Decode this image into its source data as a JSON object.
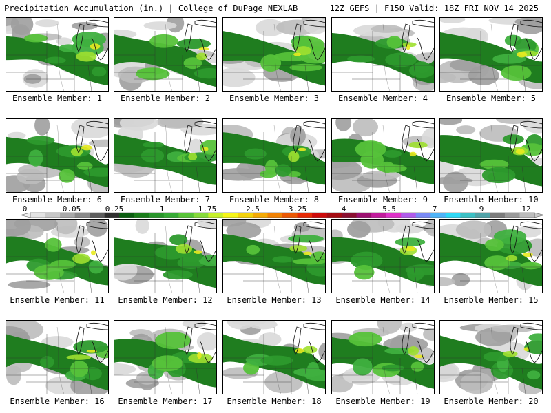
{
  "header": {
    "title": "Precipitation Accumulation (in.) | College of DuPage NEXLAB",
    "run_info": "12Z GEFS | F150 Valid: 18Z FRI NOV 14 2025"
  },
  "colorbar": {
    "tick_labels": [
      "0",
      "0.05",
      "0.25",
      "1",
      "1.75",
      "2.5",
      "3.25",
      "4",
      "5.5",
      "7",
      "9",
      "12"
    ],
    "colors": [
      "#e3e3e3",
      "#c8c8c8",
      "#a9a9a9",
      "#8a8a8a",
      "#5e5e5e",
      "#2f2f2f",
      "#0b5d10",
      "#1a7d1a",
      "#29962b",
      "#37ab36",
      "#58c438",
      "#86da3a",
      "#c6f02a",
      "#f5f518",
      "#f3d20c",
      "#f3aa06",
      "#f08204",
      "#ea5804",
      "#e52a05",
      "#cd0a0a",
      "#a50c12",
      "#8a1030",
      "#9c1070",
      "#c11c9c",
      "#de32c8",
      "#b05bea",
      "#7a8af5",
      "#4fb4f8",
      "#2fd8f5",
      "#3cc0c4",
      "#51a3a8",
      "#7c7c7c",
      "#9a9a9a",
      "#bcbcbc"
    ]
  },
  "panels": [
    {
      "label": "Ensemble Member: 1"
    },
    {
      "label": "Ensemble Member: 2"
    },
    {
      "label": "Ensemble Member: 3"
    },
    {
      "label": "Ensemble Member: 4"
    },
    {
      "label": "Ensemble Member: 5"
    },
    {
      "label": "Ensemble Member: 6"
    },
    {
      "label": "Ensemble Member: 7"
    },
    {
      "label": "Ensemble Member: 8"
    },
    {
      "label": "Ensemble Member: 9"
    },
    {
      "label": "Ensemble Member: 10"
    },
    {
      "label": "Ensemble Member: 11"
    },
    {
      "label": "Ensemble Member: 12"
    },
    {
      "label": "Ensemble Member: 13"
    },
    {
      "label": "Ensemble Member: 14"
    },
    {
      "label": "Ensemble Member: 15"
    },
    {
      "label": "Ensemble Member: 16"
    },
    {
      "label": "Ensemble Member: 17"
    },
    {
      "label": "Ensemble Member: 18"
    },
    {
      "label": "Ensemble Member: 19"
    },
    {
      "label": "Ensemble Member: 20"
    }
  ]
}
